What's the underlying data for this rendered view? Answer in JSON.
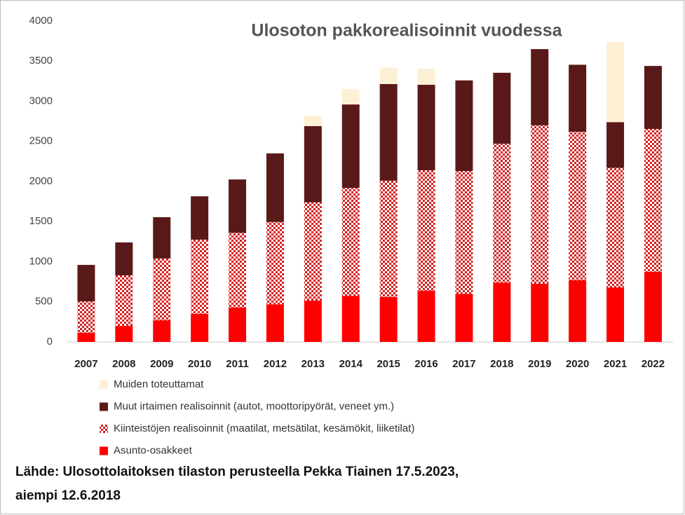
{
  "chart_data": {
    "type": "bar",
    "stacked": true,
    "title": "Ulosoton pakkorealisoinnit vuodessa",
    "categories": [
      "2007",
      "2008",
      "2009",
      "2010",
      "2011",
      "2012",
      "2013",
      "2014",
      "2015",
      "2016",
      "2017",
      "2018",
      "2019",
      "2020",
      "2021",
      "2022"
    ],
    "series": [
      {
        "name": "Asunto-osakkeet",
        "color": "#ff0000",
        "values": [
          115,
          200,
          270,
          350,
          430,
          470,
          515,
          575,
          560,
          640,
          600,
          740,
          725,
          770,
          680,
          875
        ]
      },
      {
        "name": "Kiinteistöjen realisoinnit (maatilat, metsätilat, kesämökit, liiketilat)",
        "color": "#d42020",
        "pattern": "checkered",
        "values": [
          390,
          630,
          770,
          925,
          930,
          1025,
          1225,
          1345,
          1450,
          1500,
          1530,
          1730,
          1975,
          1850,
          1490,
          1780
        ]
      },
      {
        "name": "Muut irtaimen realisoinnit (autot, moottoripyörät, veneet ym.)",
        "color": "#5a1919",
        "values": [
          455,
          410,
          515,
          540,
          665,
          855,
          950,
          1040,
          1205,
          1065,
          1130,
          885,
          950,
          835,
          570,
          785
        ]
      },
      {
        "name": "Muiden toteuttamat",
        "color": "#fdf0d5",
        "values": [
          0,
          0,
          0,
          0,
          0,
          0,
          130,
          190,
          205,
          200,
          0,
          0,
          0,
          0,
          1000,
          0
        ]
      }
    ],
    "ylim": [
      0,
      4000
    ],
    "yticks": [
      0,
      500,
      1000,
      1500,
      2000,
      2500,
      3000,
      3500,
      4000
    ],
    "grid": false,
    "source": [
      "Lähde: Ulosottolaitoksen tilaston perusteella Pekka Tiainen 17.5.2023,",
      "aiempi 12.6.2018"
    ]
  }
}
